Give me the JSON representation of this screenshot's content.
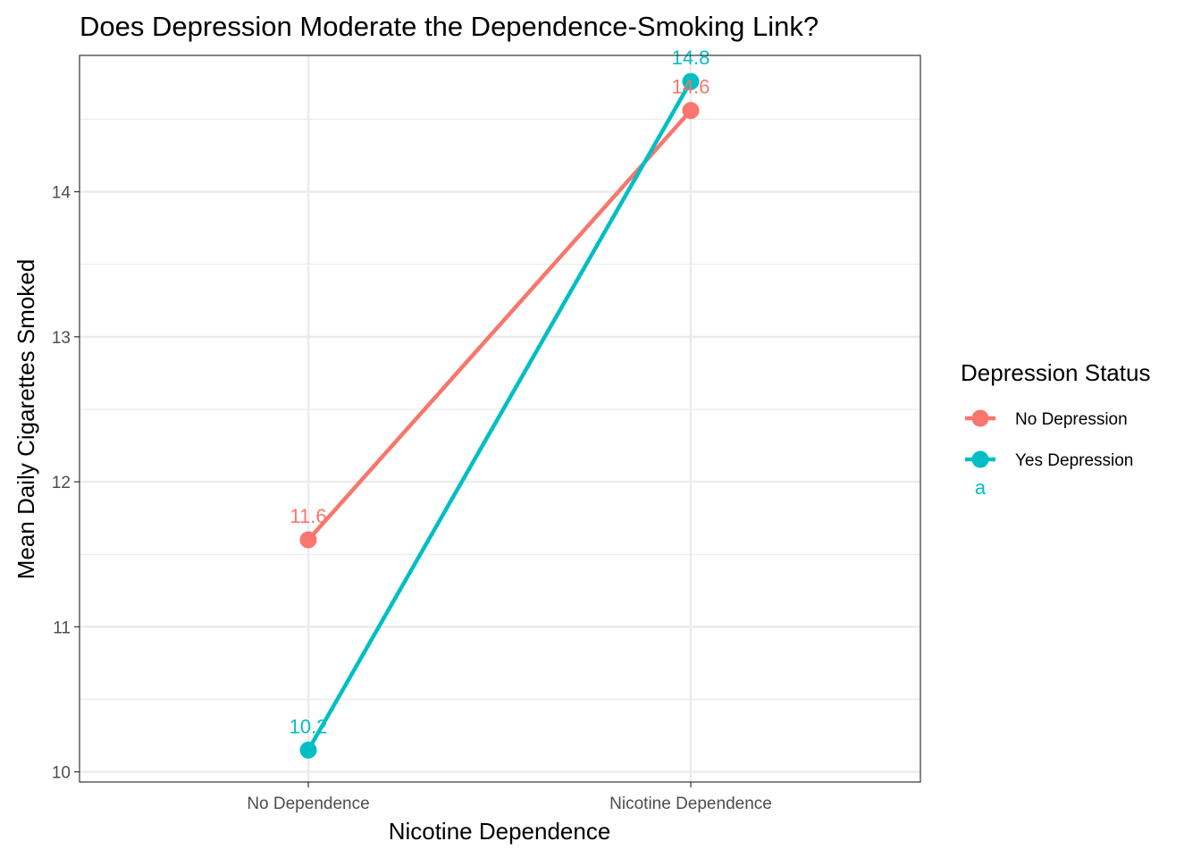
{
  "chart_data": {
    "type": "line",
    "title": "Does Depression Moderate the Dependence-Smoking Link?",
    "xlabel": "Nicotine Dependence",
    "ylabel": "Mean Daily Cigarettes Smoked",
    "categories": [
      "No Dependence",
      "Nicotine Dependence"
    ],
    "ylim": [
      9.93,
      14.94
    ],
    "yticks": [
      10,
      11,
      12,
      13,
      14
    ],
    "grid": true,
    "legend": {
      "title": "Depression Status",
      "position": "right",
      "extra_text": "a"
    },
    "series": [
      {
        "name": "No Depression",
        "color": "#F8766D",
        "values": [
          11.6,
          14.56
        ],
        "labels": [
          "11.6",
          "14.6"
        ]
      },
      {
        "name": "Yes Depression",
        "color": "#00BFC4",
        "values": [
          10.15,
          14.76
        ],
        "labels": [
          "10.2",
          "14.8"
        ]
      }
    ]
  }
}
